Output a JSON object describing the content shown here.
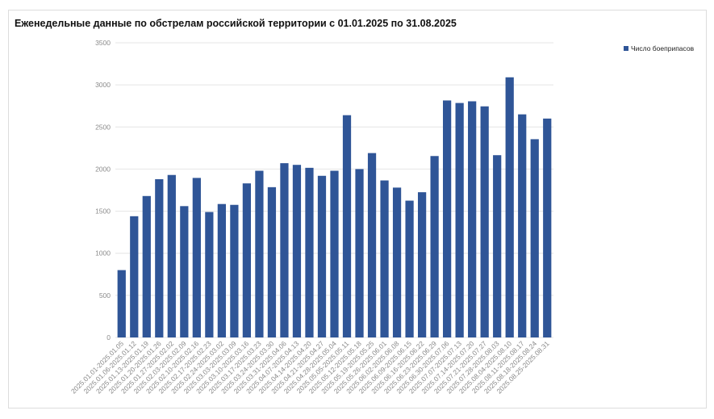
{
  "chart_data": {
    "type": "bar",
    "title": "Еженедельные данные по обстрелам российской территории с 01.01.2025 по 31.08.2025",
    "xlabel": "",
    "ylabel": "",
    "ylim": [
      0,
      3500
    ],
    "yticks": [
      0,
      500,
      1000,
      1500,
      2000,
      2500,
      3000,
      3500
    ],
    "grid": true,
    "legend_position": "top-right",
    "bar_color": "#2f5597",
    "categories": [
      "2025.01.01-2025.01.05",
      "2025.01.06-2025.01.12",
      "2025.01.13-2025.01.19",
      "2025.01.20-2025.01.26",
      "2025.01.27-2025.02.02",
      "2025.02.03-2025.02.09",
      "2025.02.10-2025.02.16",
      "2025.02.17-2025.02.23",
      "2025.02.24-2025.03.02",
      "2025.03.03-2025.03.09",
      "2025.03.10-2025.03.16",
      "2025.03.17-2025.03.23",
      "2025.03.24-2025.03.30",
      "2025.03.31-2025.04.06",
      "2025.04.07-2025.04.13",
      "2025.04.14-2025.04.20",
      "2025.04.21-2025.04.27",
      "2025.04.28-2025.05.04",
      "2025.05.05-2025.05.11",
      "2025.05.12-2025.05.18",
      "2025.05.19-2025.05.25",
      "2025.05.26-2025.06.01",
      "2025.06.02-2025.06.08",
      "2025.06.09-2025.06.15",
      "2025.06.16-2025.06.22",
      "2025.06.23-2025.06.29",
      "2025.06.30-2025.07.06",
      "2025.07.07-2025.07.13",
      "2025.07.14-2025.07.20",
      "2025.07.21-2025.07.27",
      "2025.07.28-2025.08.03",
      "2025.08.04-2025.08.10",
      "2025.08.11-2025.08.17",
      "2025.08.18-2025.08.24",
      "2025.08.25-2025.08.31"
    ],
    "series": [
      {
        "name": "Число боеприпасов",
        "values": [
          800,
          1440,
          1680,
          1880,
          1930,
          1560,
          1895,
          1490,
          1585,
          1575,
          1830,
          1980,
          1785,
          2070,
          2050,
          2015,
          1920,
          1980,
          2640,
          2000,
          2190,
          1865,
          1780,
          1625,
          1725,
          2155,
          2815,
          2785,
          2805,
          2745,
          2165,
          3090,
          2650,
          2355,
          2600
        ]
      }
    ]
  }
}
